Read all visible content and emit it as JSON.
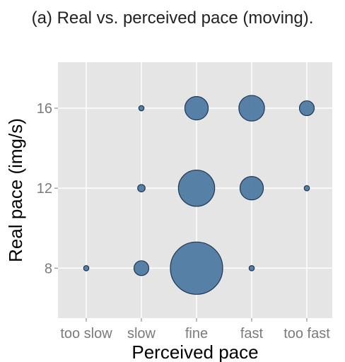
{
  "caption": "(a) Real vs. perceived pace (moving).",
  "chart_data": {
    "type": "scatter",
    "subtype": "bubble",
    "title": "",
    "xlabel": "Perceived pace",
    "ylabel": "Real pace (img/s)",
    "x_categories": [
      "too slow",
      "slow",
      "fine",
      "fast",
      "too fast"
    ],
    "y_ticks": [
      8,
      12,
      16
    ],
    "ylim": [
      5.5,
      18.3
    ],
    "grid": true,
    "legend": "none",
    "bubble_color": "#4f7aa3",
    "panel_color": "#e5e5e5",
    "points": [
      {
        "x": "too slow",
        "y": 8,
        "size": 1
      },
      {
        "x": "slow",
        "y": 8,
        "size": 8
      },
      {
        "x": "fine",
        "y": 8,
        "size": 100
      },
      {
        "x": "fast",
        "y": 8,
        "size": 1
      },
      {
        "x": "slow",
        "y": 12,
        "size": 2
      },
      {
        "x": "fine",
        "y": 12,
        "size": 48
      },
      {
        "x": "fast",
        "y": 12,
        "size": 20
      },
      {
        "x": "too fast",
        "y": 12,
        "size": 1
      },
      {
        "x": "slow",
        "y": 16,
        "size": 1
      },
      {
        "x": "fine",
        "y": 16,
        "size": 20
      },
      {
        "x": "fast",
        "y": 16,
        "size": 24
      },
      {
        "x": "too fast",
        "y": 16,
        "size": 8
      }
    ]
  }
}
